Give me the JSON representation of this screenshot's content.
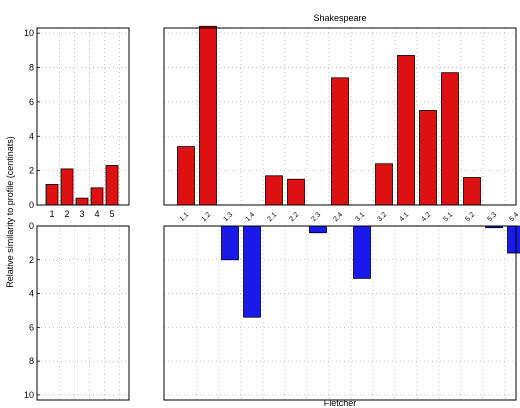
{
  "chart_data": {
    "type": "bar",
    "title": "Shakespeare",
    "xlabel": "Fletcher",
    "ylabel": "Relative similarity to profile (centinats)",
    "colors": {
      "top": "#dd1111",
      "bottom": "#1a1ae8"
    },
    "grid": true,
    "panels": [
      {
        "id": "top-left",
        "categories": [
          "1",
          "2",
          "3",
          "4",
          "5"
        ],
        "values": [
          1.2,
          2.1,
          0.4,
          1.0,
          2.3
        ],
        "ylim": [
          0,
          10.3
        ],
        "yticks": [
          "0",
          "2",
          "4",
          "6",
          "8",
          "10"
        ]
      },
      {
        "id": "top-right",
        "categories": [
          "1.1",
          "1.2",
          "1.3",
          "1.4",
          "2.1",
          "2.2",
          "2.3",
          "2.4",
          "3.1",
          "3.2",
          "4.1",
          "4.2",
          "5.1",
          "5.2",
          "5.3",
          "5.4"
        ],
        "values": [
          3.4,
          10.4,
          0,
          0,
          1.7,
          1.5,
          0,
          7.4,
          0,
          2.4,
          8.7,
          5.5,
          7.7,
          1.6,
          0,
          0
        ],
        "ylim": [
          0,
          10.3
        ]
      },
      {
        "id": "bottom-left",
        "categories": [
          "1",
          "2",
          "3",
          "4",
          "5"
        ],
        "values": [
          0,
          0,
          0,
          0,
          0
        ],
        "ylim": [
          0,
          10.3
        ],
        "yticks": [
          "0",
          "2",
          "4",
          "6",
          "8",
          "10"
        ]
      },
      {
        "id": "bottom-right",
        "categories": [
          "1.1",
          "1.2",
          "1.3",
          "1.4",
          "2.1",
          "2.2",
          "2.3",
          "2.4",
          "3.1",
          "3.2",
          "4.1",
          "4.2",
          "5.1",
          "5.2",
          "5.3",
          "5.4"
        ],
        "values": [
          0,
          0,
          2.0,
          5.4,
          0,
          0,
          0.4,
          0,
          3.1,
          0,
          0,
          0,
          0,
          0,
          0.1,
          1.6
        ],
        "ylim": [
          0,
          10.3
        ]
      }
    ]
  }
}
